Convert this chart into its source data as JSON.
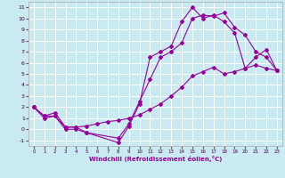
{
  "xlabel": "Windchill (Refroidissement éolien,°C)",
  "bg_color": "#c8eaf0",
  "grid_color": "#ffffff",
  "line_color": "#990099",
  "xlim": [
    -0.5,
    23.5
  ],
  "ylim": [
    -1.5,
    11.5
  ],
  "xticks": [
    0,
    1,
    2,
    3,
    4,
    5,
    6,
    7,
    8,
    9,
    10,
    11,
    12,
    13,
    14,
    15,
    16,
    17,
    18,
    19,
    20,
    21,
    22,
    23
  ],
  "yticks": [
    -1,
    0,
    1,
    2,
    3,
    4,
    5,
    6,
    7,
    8,
    9,
    10,
    11
  ],
  "line1_x": [
    0,
    1,
    2,
    3,
    4,
    5,
    6,
    7,
    8,
    9,
    10,
    11,
    12,
    13,
    14,
    15,
    16,
    17,
    18,
    19,
    20,
    21,
    22,
    23
  ],
  "line1_y": [
    2,
    1.2,
    1.2,
    0.2,
    0.2,
    0.3,
    0.5,
    0.7,
    0.8,
    1.0,
    1.3,
    1.8,
    2.3,
    3.0,
    3.8,
    4.8,
    5.2,
    5.6,
    5.0,
    5.2,
    5.5,
    5.8,
    5.5,
    5.3
  ],
  "line2_x": [
    0,
    1,
    2,
    3,
    4,
    5,
    8,
    9,
    10,
    11,
    12,
    13,
    14,
    15,
    16,
    17,
    18,
    19,
    20,
    21,
    22,
    23
  ],
  "line2_y": [
    2,
    1.0,
    1.2,
    0.0,
    0.0,
    -0.3,
    -1.2,
    0.3,
    2.3,
    6.5,
    7.0,
    7.5,
    9.7,
    11.0,
    10.0,
    10.3,
    9.7,
    8.7,
    5.5,
    6.5,
    7.2,
    5.3
  ],
  "line3_x": [
    0,
    1,
    2,
    3,
    4,
    5,
    8,
    9,
    10,
    11,
    12,
    13,
    14,
    15,
    16,
    17,
    18,
    19,
    20,
    21,
    22,
    23
  ],
  "line3_y": [
    2,
    1.2,
    1.5,
    0.2,
    0.2,
    -0.3,
    -0.8,
    0.5,
    2.5,
    4.5,
    6.5,
    7.0,
    7.8,
    10.0,
    10.3,
    10.2,
    10.5,
    9.2,
    8.5,
    7.0,
    6.5,
    5.3
  ]
}
